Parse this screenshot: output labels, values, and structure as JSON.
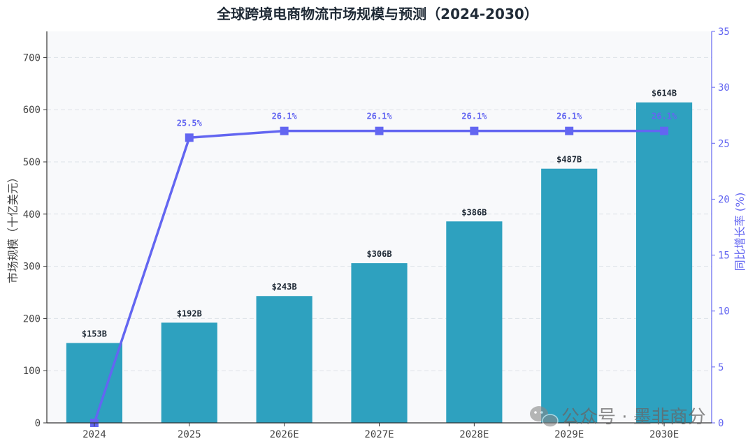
{
  "chart_data": {
    "type": "bar",
    "title": "全球跨境电商物流市场规模与预测（2024-2030）",
    "categories": [
      "2024",
      "2025",
      "2026E",
      "2027E",
      "2028E",
      "2029E",
      "2030E"
    ],
    "series": [
      {
        "type": "bar",
        "axis": "left",
        "values": [
          153,
          192,
          243,
          306,
          386,
          487,
          614
        ],
        "labels": [
          "$153B",
          "$192B",
          "$243B",
          "$306B",
          "$386B",
          "$487B",
          "$614B"
        ],
        "color": "#2ea1bf"
      },
      {
        "type": "line",
        "axis": "right",
        "values": [
          0,
          25.5,
          26.1,
          26.1,
          26.1,
          26.1,
          26.1
        ],
        "labels": [
          "",
          "25.5%",
          "26.1%",
          "26.1%",
          "26.1%",
          "26.1%",
          "26.1%"
        ],
        "color": "#6366f1"
      }
    ],
    "ylabel": "市场规模（十亿美元）",
    "ylabel_right": "同比增长率 (%)",
    "ylim": [
      0,
      750
    ],
    "ylim_right": [
      0,
      35
    ],
    "yticks": [
      "0",
      "100",
      "200",
      "300",
      "400",
      "500",
      "600",
      "700"
    ],
    "yticks_right": [
      "0",
      "5",
      "10",
      "15",
      "20",
      "25",
      "30",
      "35"
    ],
    "grid": true,
    "background": "#f8f9fb"
  },
  "watermark": {
    "text": "公众号 · 墨非商分",
    "icon": "wechat-icon"
  }
}
